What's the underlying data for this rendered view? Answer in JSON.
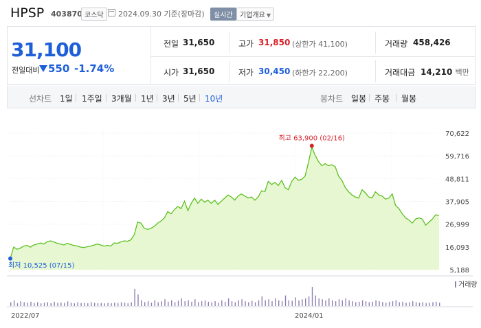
{
  "header": {
    "title": "HPSP",
    "code": "403870",
    "market": "코스닥",
    "date": "2024.09.30",
    "basis": "기준(장마감)",
    "realtime": "실시간",
    "company_info": "기업개요"
  },
  "quote": {
    "price": "31,100",
    "change_label": "전일대비",
    "change": "550",
    "change_pct": "-1.74%",
    "prev_close_label": "전일",
    "prev_close": "31,650",
    "open_label": "시가",
    "open": "31,650",
    "high_label": "고가",
    "high": "31,850",
    "upper_limit": "(상한가 41,100)",
    "low_label": "저가",
    "low": "30,450",
    "lower_limit": "(하한가 22,200)",
    "volume_label": "거래량",
    "volume": "458,426",
    "amount_label": "거래대금",
    "amount": "14,210",
    "amount_unit": "백만"
  },
  "periods": {
    "line_label": "선차트",
    "line_items": [
      "1일",
      "1주일",
      "3개월",
      "1년",
      "3년",
      "5년",
      "10년"
    ],
    "active": "10년",
    "candle_label": "봉차트",
    "candle_items": [
      "일봉",
      "주봉",
      "월봉"
    ]
  },
  "colors": {
    "up": "#d8232a",
    "down": "#1e5fd9",
    "line": "#5cc01e",
    "fill": "#e6f7d2",
    "volume": "#8f7fb0"
  },
  "chart_data": {
    "type": "area",
    "y_ticks": [
      "70,622",
      "59,716",
      "48,811",
      "37,905",
      "26,999",
      "16,093",
      "5,188"
    ],
    "ylim": [
      5188,
      70622
    ],
    "x_labels": [
      "2022/07",
      "2024/01"
    ],
    "max_annotation": "최고 63,900 (02/16)",
    "min_annotation": "최저 10,525 (07/15)",
    "volume_label": "거래량",
    "series": [
      {
        "values": [
          10525,
          16000,
          15000,
          15500,
          16500,
          16800,
          16000,
          17000,
          17500,
          18000,
          17500,
          18500,
          19000,
          18500,
          17800,
          17500,
          17000,
          17800,
          17300,
          16800,
          16500,
          16000,
          15800,
          16200,
          16500,
          17000,
          17500,
          17000,
          16500,
          16800,
          16500,
          18000,
          17800,
          18500,
          19000,
          18800,
          19500,
          22000,
          28000,
          27500,
          25000,
          24500,
          25000,
          26000,
          27500,
          28500,
          30000,
          33000,
          32000,
          34000,
          35500,
          34500,
          38000,
          33500,
          37000,
          39500,
          37000,
          39000,
          37500,
          38500,
          37000,
          38500,
          36500,
          38000,
          39500,
          41000,
          40000,
          38500,
          40500,
          41500,
          40500,
          39500,
          40000,
          38500,
          40000,
          43000,
          42500,
          47500,
          46000,
          47000,
          45500,
          48000,
          44500,
          43500,
          47500,
          49500,
          48000,
          48500,
          50000,
          56500,
          63900,
          60000,
          57000,
          55000,
          56000,
          55000,
          55500,
          54500,
          50000,
          48000,
          44500,
          42500,
          41000,
          40000,
          39500,
          43500,
          42000,
          40000,
          39500,
          42500,
          41000,
          40500,
          39000,
          39500,
          41500,
          36000,
          34500,
          32000,
          30000,
          29000,
          27500,
          29500,
          30000,
          29500,
          26500,
          28000,
          29500,
          31500,
          31100
        ]
      }
    ],
    "volume": [
      0.2,
      0.3,
      0.15,
      0.25,
      0.2,
      0.18,
      0.22,
      0.16,
      0.2,
      0.14,
      0.18,
      0.2,
      0.15,
      0.22,
      0.17,
      0.19,
      0.16,
      0.24,
      0.18,
      0.14,
      0.2,
      0.16,
      0.17,
      0.15,
      0.2,
      0.18,
      0.15,
      0.16,
      0.14,
      0.17,
      0.15,
      0.18,
      0.16,
      0.2,
      0.18,
      0.15,
      0.2,
      0.9,
      0.6,
      0.3,
      0.2,
      0.25,
      0.18,
      0.3,
      0.2,
      0.25,
      0.35,
      0.22,
      0.3,
      0.2,
      0.28,
      0.4,
      0.25,
      0.3,
      0.22,
      0.35,
      0.2,
      0.25,
      0.3,
      0.22,
      0.2,
      0.25,
      0.18,
      0.3,
      0.22,
      0.4,
      0.25,
      0.2,
      0.3,
      0.35,
      0.25,
      0.2,
      0.28,
      0.2,
      0.3,
      0.5,
      0.3,
      0.35,
      0.25,
      0.4,
      0.3,
      0.25,
      0.55,
      0.3,
      0.28,
      0.45,
      0.3,
      0.35,
      0.4,
      0.5,
      1.0,
      0.55,
      0.4,
      0.35,
      0.3,
      0.4,
      0.3,
      0.25,
      0.35,
      0.3,
      0.4,
      0.3,
      0.25,
      0.2,
      0.22,
      0.3,
      0.25,
      0.2,
      0.22,
      0.3,
      0.25,
      0.2,
      0.18,
      0.22,
      0.25,
      0.3,
      0.2,
      0.22,
      0.18,
      0.2,
      0.25,
      0.2,
      0.18,
      0.2,
      0.15,
      0.18,
      0.2,
      0.22,
      0.18
    ]
  }
}
